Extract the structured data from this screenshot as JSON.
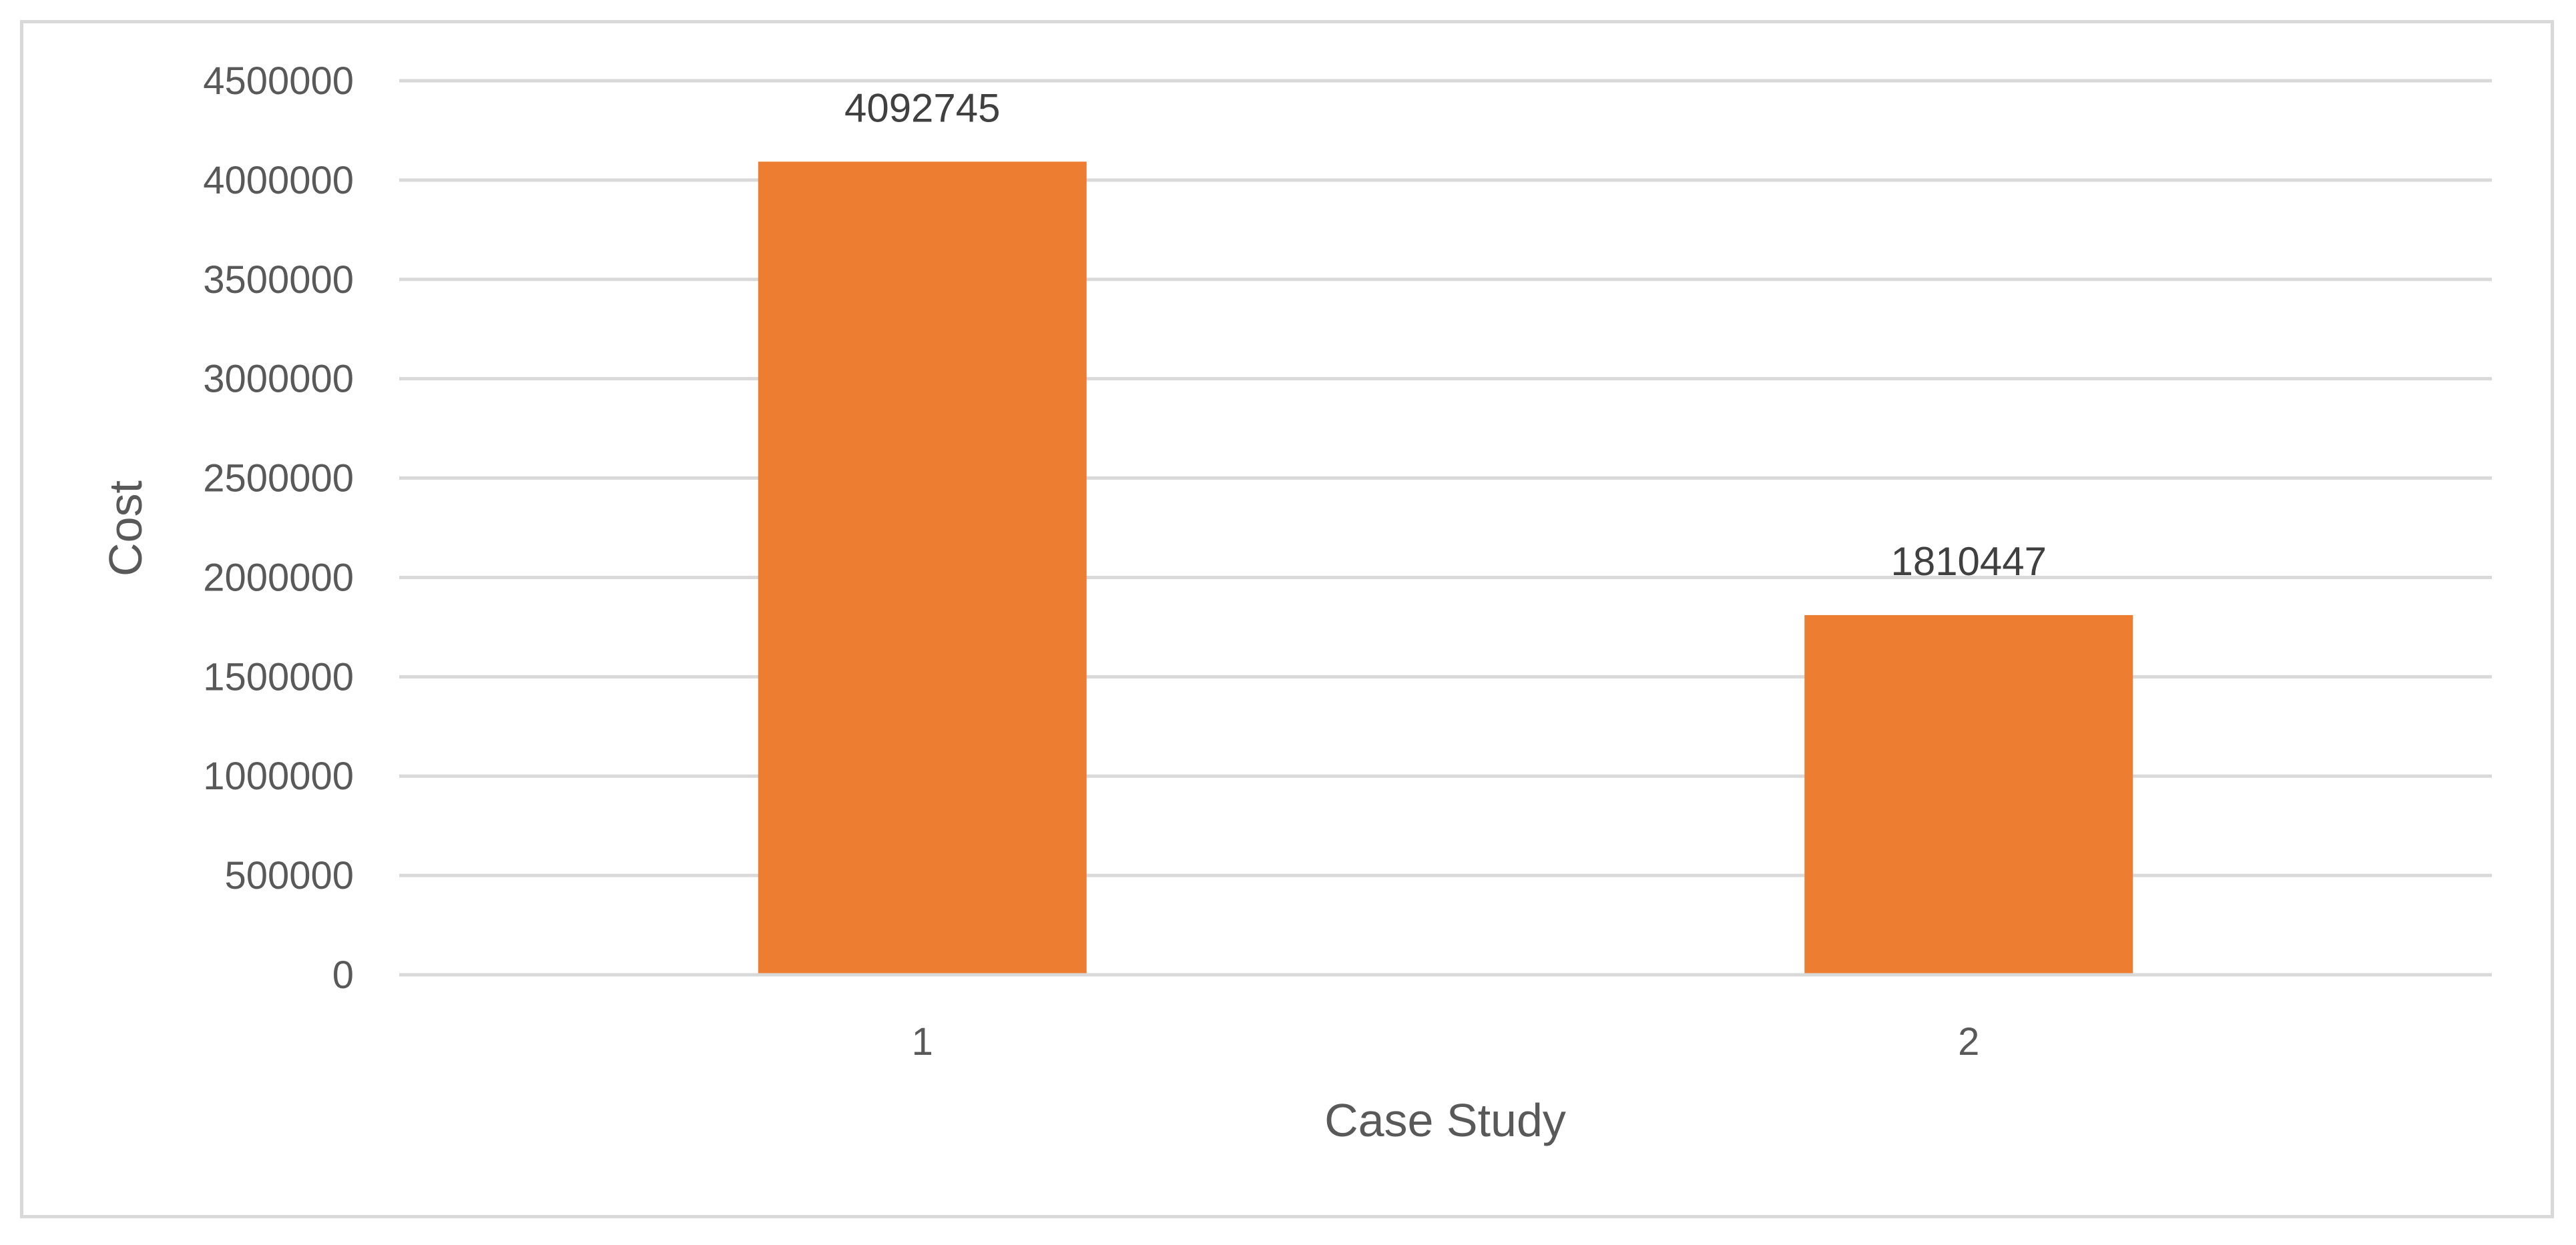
{
  "chart_data": {
    "type": "bar",
    "title": "",
    "xlabel": "Case Study",
    "ylabel": "Cost",
    "categories": [
      "1",
      "2"
    ],
    "series": [
      {
        "values": [
          4092745,
          1810447
        ],
        "color": "#ed7d31"
      }
    ],
    "data_labels": [
      "4092745",
      "1810447"
    ],
    "ylim": [
      0,
      4500000
    ],
    "yticks": [
      0,
      500000,
      1000000,
      1500000,
      2000000,
      2500000,
      3000000,
      3500000,
      4000000,
      4500000
    ],
    "ytick_labels": [
      "0",
      "500000",
      "1000000",
      "1500000",
      "2000000",
      "2500000",
      "3000000",
      "3500000",
      "4000000",
      "4500000"
    ],
    "grid": true,
    "legend": "none",
    "gridline_color": "#d9d9d9"
  }
}
